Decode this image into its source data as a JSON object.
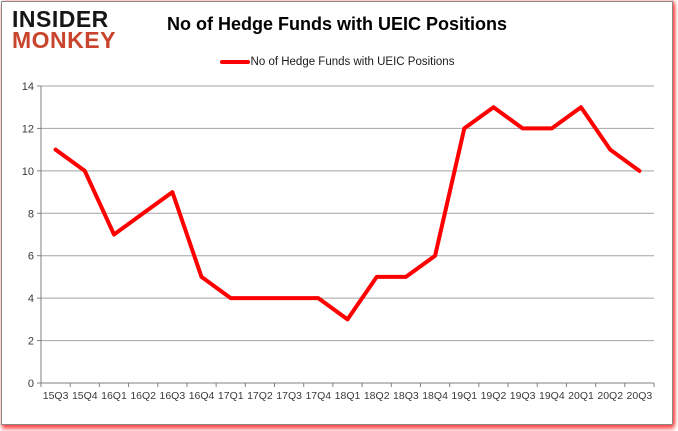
{
  "logo": {
    "line1": "INSIDER",
    "line2": "MONKEY"
  },
  "title": "No of Hedge Funds with UEIC Positions",
  "legend": {
    "label": "No of Hedge Funds with UEIC Positions"
  },
  "colors": {
    "line": "#fe0000",
    "logo_red": "#c8442c",
    "grid": "#a3a3a3",
    "axis": "#808080",
    "tick_label": "#3a3a3a",
    "border": "#8a8a8a",
    "shadow_red": "#ff0000"
  },
  "chart_data": {
    "type": "line",
    "title": "No of Hedge Funds with UEIC Positions",
    "categories": [
      "15Q3",
      "15Q4",
      "16Q1",
      "16Q2",
      "16Q3",
      "16Q4",
      "17Q1",
      "17Q2",
      "17Q3",
      "17Q4",
      "18Q1",
      "18Q2",
      "18Q3",
      "18Q4",
      "19Q1",
      "19Q2",
      "19Q3",
      "19Q4",
      "20Q1",
      "20Q2",
      "20Q3"
    ],
    "series": [
      {
        "name": "No of Hedge Funds with UEIC Positions",
        "values": [
          11,
          10,
          7,
          8,
          9,
          5,
          4,
          4,
          4,
          4,
          3,
          5,
          5,
          6,
          12,
          13,
          12,
          12,
          13,
          11,
          10
        ]
      }
    ],
    "xlabel": "",
    "ylabel": "",
    "ylim": [
      0,
      14
    ],
    "ytick_step": 2,
    "grid": true,
    "legend_position": "top-center"
  }
}
